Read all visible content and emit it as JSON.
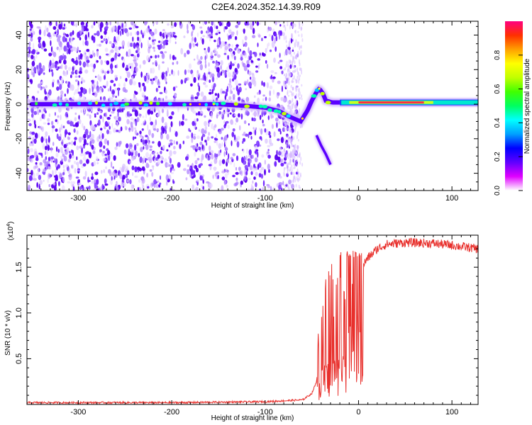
{
  "title": "C2E4.2024.352.14.39.R09",
  "chart_data": [
    {
      "type": "heatmap",
      "xlabel": "Height of straight line (km)",
      "ylabel": "Frequency (Hz)",
      "xlim": [
        -355,
        128
      ],
      "ylim": [
        -50,
        48
      ],
      "x_ticks": [
        -300,
        -200,
        -100,
        0,
        100
      ],
      "y_ticks": [
        -40,
        -20,
        0,
        20,
        40
      ],
      "colorbar": {
        "label": "Normalized spectral amplitude",
        "range": [
          0,
          1
        ],
        "ticks": [
          "0.0",
          "0.2",
          "0.4",
          "0.6",
          "0.8"
        ],
        "colors": [
          "#ffffff",
          "#e000ff",
          "#6000ff",
          "#0000ff",
          "#00a0ff",
          "#00ffff",
          "#00ff60",
          "#40ff00",
          "#c0ff00",
          "#ffff00",
          "#ffa000",
          "#ff3000",
          "#ff0080"
        ]
      },
      "main_trace": {
        "x": [
          -350,
          -300,
          -250,
          -200,
          -180,
          -150,
          -120,
          -100,
          -85,
          -75,
          -62,
          -55,
          -50,
          -45,
          -42,
          -38,
          -35,
          -28,
          -20,
          0,
          20,
          50,
          80,
          100,
          128
        ],
        "y": [
          0,
          0,
          0,
          0,
          0,
          0,
          -1,
          -2,
          -4,
          -7,
          -10,
          -4,
          2,
          7,
          9,
          6,
          2,
          1,
          1,
          1,
          1,
          1,
          1,
          1,
          1
        ]
      },
      "secondary_trace": {
        "x": [
          -45,
          -40,
          -35,
          -30
        ],
        "y": [
          -18,
          -24,
          -29,
          -35
        ]
      }
    },
    {
      "type": "line",
      "xlabel": "Height of straight line (km)",
      "ylabel": "SNR (10 * v/v)",
      "scale_note": "(x10",
      "scale_exp": "4",
      "xlim": [
        -355,
        128
      ],
      "ylim": [
        0,
        1.85
      ],
      "x_ticks": [
        -300,
        -200,
        -100,
        0,
        100
      ],
      "y_ticks": [
        0.5,
        1.0,
        1.5
      ],
      "y_tick_labels": [
        "0.5",
        "1.0",
        "1.5"
      ],
      "line_color": "#e8302c",
      "envelope": {
        "x": [
          -355,
          -200,
          -100,
          -60,
          -50,
          -45,
          -40,
          -35,
          -30,
          -25,
          -20,
          -15,
          -10,
          -5,
          0,
          10,
          20,
          30,
          50,
          80,
          100,
          128
        ],
        "y": [
          0.02,
          0.02,
          0.03,
          0.05,
          0.12,
          0.25,
          0.55,
          0.65,
          0.7,
          0.75,
          0.85,
          1.05,
          1.25,
          1.35,
          1.45,
          1.6,
          1.7,
          1.75,
          1.77,
          1.76,
          1.74,
          1.7
        ]
      }
    }
  ]
}
